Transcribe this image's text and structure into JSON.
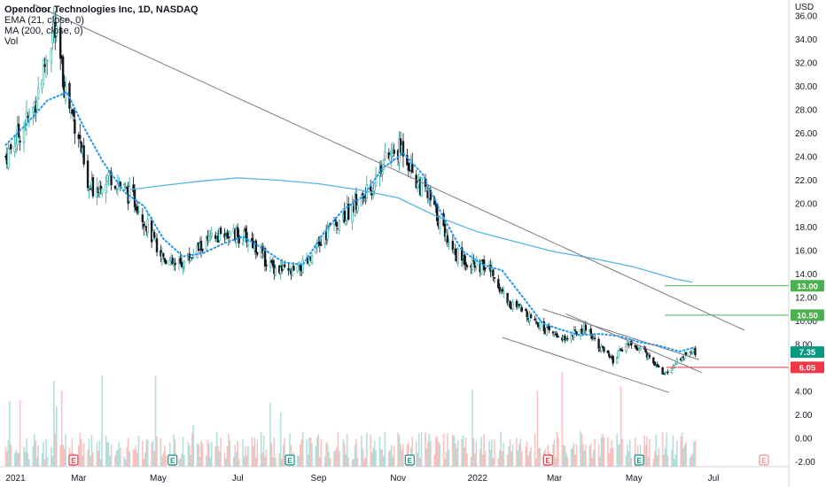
{
  "legend": {
    "title": "Opendoor Technologies Inc, 1D, NASDAQ",
    "line1": "EMA (21, close, 0)",
    "line2": "MA (200, close, 0)",
    "line3": "Vol"
  },
  "axis": {
    "currency": "USD",
    "price_ticks": [
      "36.00",
      "34.00",
      "32.00",
      "30.00",
      "28.00",
      "26.00",
      "24.00",
      "22.00",
      "20.00",
      "18.00",
      "16.00",
      "14.00",
      "12.00",
      "10.00",
      "8.00",
      "6.00",
      "4.00",
      "2.00",
      "0.00",
      "-2.00"
    ],
    "date_labels": [
      "2021",
      "Mar",
      "May",
      "Jul",
      "Sep",
      "Nov",
      "2022",
      "Mar",
      "May",
      "Jul"
    ]
  },
  "price_badges": [
    {
      "label": "13.00",
      "value": 13.0,
      "color": "#4caf50"
    },
    {
      "label": "10.50",
      "value": 10.5,
      "color": "#4caf50"
    },
    {
      "label": "7.35",
      "value": 7.35,
      "color": "#089981"
    },
    {
      "label": "6.05",
      "value": 6.05,
      "color": "#f23645"
    }
  ],
  "events": {
    "earnings_label": "E",
    "dividend_label": "E"
  },
  "colors": {
    "up": "#26a69a",
    "down": "#131722",
    "ema": "#2196f3",
    "ma": "#56b4e9",
    "trend": "#787b86",
    "target_line": "#4caf50",
    "stop_line": "#f23645"
  },
  "chart_data": {
    "type": "candlestick",
    "title": "Opendoor Technologies Inc, 1D, NASDAQ",
    "ylabel": "USD",
    "ylim": [
      -2.6,
      37
    ],
    "x_range": [
      "2021-01-01",
      "2022-07-25"
    ],
    "series": [
      {
        "name": "EMA (21, close, 0)",
        "type": "line",
        "x": [
          "2021-01-04",
          "2021-01-20",
          "2021-02-05",
          "2021-02-20",
          "2021-03-05",
          "2021-03-20",
          "2021-04-05",
          "2021-04-20",
          "2021-05-05",
          "2021-05-20",
          "2021-06-05",
          "2021-06-20",
          "2021-07-05",
          "2021-07-20",
          "2021-08-05",
          "2021-08-20",
          "2021-09-05",
          "2021-09-20",
          "2021-10-05",
          "2021-10-20",
          "2021-11-05",
          "2021-11-20",
          "2021-12-05",
          "2021-12-20",
          "2022-01-05",
          "2022-01-20",
          "2022-02-05",
          "2022-02-20",
          "2022-03-05",
          "2022-03-20",
          "2022-04-05",
          "2022-04-20",
          "2022-05-05",
          "2022-05-20",
          "2022-06-05",
          "2022-06-15"
        ],
        "values": [
          25.0,
          26.8,
          28.8,
          29.5,
          26.5,
          23.5,
          21.0,
          19.8,
          17.0,
          15.5,
          15.8,
          16.6,
          17.2,
          16.2,
          15.0,
          14.8,
          17.5,
          19.5,
          20.6,
          23.0,
          24.3,
          22.5,
          19.0,
          16.0,
          14.8,
          14.3,
          12.0,
          9.8,
          9.3,
          8.8,
          8.9,
          8.7,
          8.2,
          7.9,
          7.4,
          7.7
        ]
      },
      {
        "name": "MA (200, close, 0)",
        "type": "line",
        "x": [
          "2021-04-10",
          "2021-05-01",
          "2021-06-01",
          "2021-07-01",
          "2021-08-01",
          "2021-09-01",
          "2021-10-01",
          "2021-11-01",
          "2021-12-01",
          "2022-01-01",
          "2022-02-01",
          "2022-03-01",
          "2022-04-01",
          "2022-05-01",
          "2022-06-01",
          "2022-06-15"
        ],
        "values": [
          21.2,
          21.5,
          21.9,
          22.2,
          22.0,
          21.7,
          21.2,
          20.5,
          18.9,
          17.6,
          16.7,
          15.9,
          15.3,
          14.6,
          13.6,
          13.3
        ]
      },
      {
        "name": "Volume",
        "type": "bar",
        "note": "relative daily volume shown in lower pane",
        "values": []
      }
    ],
    "ohlc_sample": [
      {
        "date": "2021-01-04",
        "close": 24.0
      },
      {
        "date": "2021-01-25",
        "close": 28.0
      },
      {
        "date": "2021-02-10",
        "close": 35.0
      },
      {
        "date": "2021-02-20",
        "close": 29.0
      },
      {
        "date": "2021-03-01",
        "close": 26.0
      },
      {
        "date": "2021-03-08",
        "close": 21.0
      },
      {
        "date": "2021-03-25",
        "close": 22.5
      },
      {
        "date": "2021-04-15",
        "close": 20.0
      },
      {
        "date": "2021-05-01",
        "close": 16.0
      },
      {
        "date": "2021-05-15",
        "close": 14.5
      },
      {
        "date": "2021-06-05",
        "close": 16.5
      },
      {
        "date": "2021-06-20",
        "close": 17.5
      },
      {
        "date": "2021-07-10",
        "close": 17.0
      },
      {
        "date": "2021-07-25",
        "close": 14.8
      },
      {
        "date": "2021-08-10",
        "close": 14.0
      },
      {
        "date": "2021-08-25",
        "close": 15.0
      },
      {
        "date": "2021-09-10",
        "close": 18.0
      },
      {
        "date": "2021-09-25",
        "close": 19.5
      },
      {
        "date": "2021-10-10",
        "close": 21.0
      },
      {
        "date": "2021-10-20",
        "close": 23.5
      },
      {
        "date": "2021-11-05",
        "close": 24.8
      },
      {
        "date": "2021-11-15",
        "close": 22.0
      },
      {
        "date": "2021-11-25",
        "close": 20.5
      },
      {
        "date": "2021-12-05",
        "close": 18.0
      },
      {
        "date": "2021-12-15",
        "close": 15.8
      },
      {
        "date": "2021-12-28",
        "close": 14.8
      },
      {
        "date": "2022-01-10",
        "close": 14.5
      },
      {
        "date": "2022-01-25",
        "close": 11.5
      },
      {
        "date": "2022-02-10",
        "close": 10.5
      },
      {
        "date": "2022-02-25",
        "close": 9.0
      },
      {
        "date": "2022-03-10",
        "close": 8.5
      },
      {
        "date": "2022-03-25",
        "close": 9.5
      },
      {
        "date": "2022-04-05",
        "close": 7.8
      },
      {
        "date": "2022-04-15",
        "close": 6.5
      },
      {
        "date": "2022-04-25",
        "close": 8.2
      },
      {
        "date": "2022-05-10",
        "close": 7.3
      },
      {
        "date": "2022-05-25",
        "close": 5.4
      },
      {
        "date": "2022-06-05",
        "close": 6.8
      },
      {
        "date": "2022-06-15",
        "close": 7.35
      }
    ],
    "drawings": [
      {
        "type": "trendline",
        "from": {
          "date": "2021-01-25",
          "price": 37.0
        },
        "to": {
          "date": "2022-07-25",
          "price": 9.2
        }
      },
      {
        "type": "channel_upper",
        "from": {
          "date": "2022-02-20",
          "price": 11.0
        },
        "to": {
          "date": "2022-06-20",
          "price": 6.7
        }
      },
      {
        "type": "channel_lower",
        "from": {
          "date": "2022-01-20",
          "price": 8.6
        },
        "to": {
          "date": "2022-05-28",
          "price": 3.9
        }
      },
      {
        "type": "channel_mid",
        "from": {
          "date": "2022-03-10",
          "price": 10.6
        },
        "to": {
          "date": "2022-06-22",
          "price": 5.6
        }
      },
      {
        "type": "horizontal",
        "price": 13.0
      },
      {
        "type": "horizontal",
        "price": 10.5
      },
      {
        "type": "horizontal",
        "price": 6.05
      }
    ],
    "grid": false,
    "legend_position": "top-left"
  }
}
